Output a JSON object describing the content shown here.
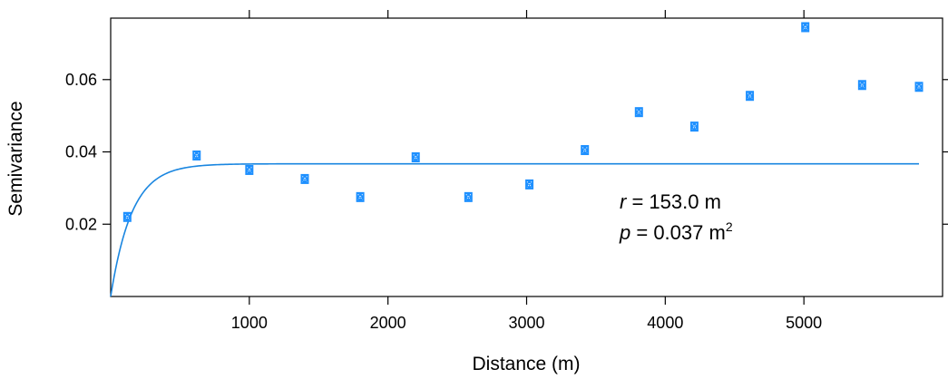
{
  "chart_data": {
    "type": "scatter",
    "title": "",
    "xlabel": "Distance (m)",
    "ylabel": "Semivariance",
    "xlim": [
      0,
      6000
    ],
    "ylim": [
      0.0,
      0.077
    ],
    "x_ticks": [
      1000,
      2000,
      3000,
      4000,
      5000
    ],
    "x_tick_labels": [
      "1000",
      "2000",
      "3000",
      "4000",
      "5000"
    ],
    "y_ticks": [
      0.02,
      0.04,
      0.06
    ],
    "y_tick_labels": [
      "0.02",
      "0.04",
      "0.06"
    ],
    "grid": false,
    "points": {
      "x": [
        120,
        620,
        1000,
        1400,
        1800,
        2200,
        2580,
        3020,
        3420,
        3810,
        4210,
        4610,
        5010,
        5420,
        5830
      ],
      "y": [
        0.022,
        0.039,
        0.035,
        0.0325,
        0.0275,
        0.0385,
        0.0275,
        0.031,
        0.0405,
        0.051,
        0.047,
        0.0555,
        0.0745,
        0.0585,
        0.058
      ]
    },
    "fitted_curve": {
      "model": "exponential",
      "range": 153.0,
      "sill": 0.0367,
      "x_max": 5830
    },
    "annotation": {
      "r_symbol": "r",
      "r_text": " = 153.0 m",
      "p_symbol": "p",
      "p_text": " = 0.037 m",
      "p_unit_sup": "2"
    },
    "colors": {
      "points": "#1e90ff",
      "curve": "#1a86e0",
      "axis": "#000000"
    }
  }
}
